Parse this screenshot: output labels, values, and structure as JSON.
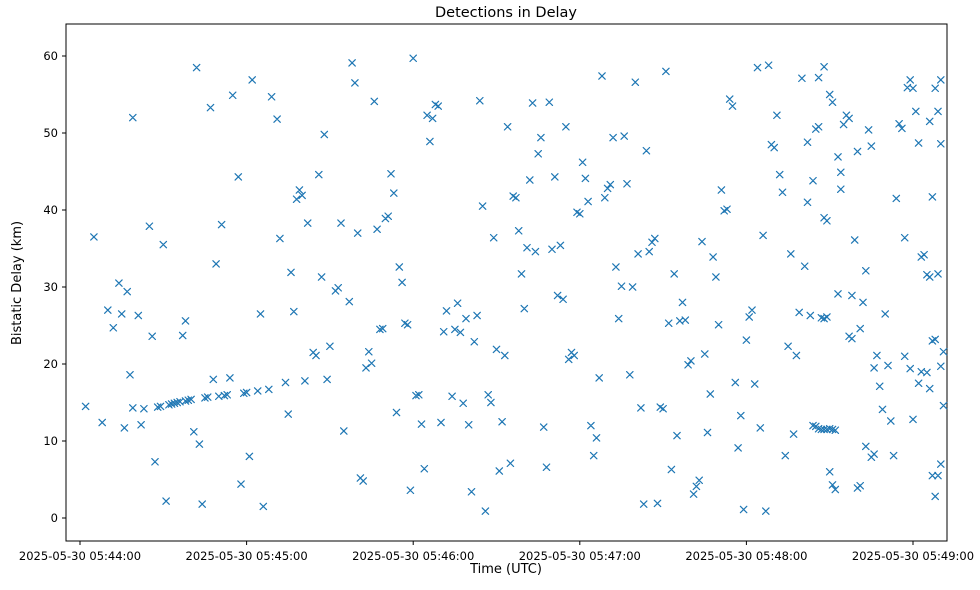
{
  "chart_data": {
    "type": "scatter",
    "title": "Detections in Delay",
    "xlabel": "Time (UTC)",
    "ylabel": "Bistatic Delay (km)",
    "marker": "x",
    "marker_color": "#1f77b4",
    "axes_color": "#000000",
    "background": "#ffffff",
    "legend": "none",
    "grid": false,
    "x_unit": "seconds after 2025-05-30 05:44:00 UTC",
    "x_tick_offsets_s": [
      0,
      60,
      120,
      180,
      240,
      300
    ],
    "x_tick_labels": [
      "2025-05-30 05:44:00",
      "2025-05-30 05:45:00",
      "2025-05-30 05:46:00",
      "2025-05-30 05:47:00",
      "2025-05-30 05:48:00",
      "2025-05-30 05:49:00"
    ],
    "y_tick_values": [
      0,
      10,
      20,
      30,
      40,
      50,
      60
    ],
    "xlim_s": [
      -5,
      312
    ],
    "ylim": [
      -3,
      64
    ],
    "points": [
      [
        2,
        14.5
      ],
      [
        5,
        36.5
      ],
      [
        8,
        12.4
      ],
      [
        10,
        27.0
      ],
      [
        12,
        24.7
      ],
      [
        14,
        30.5
      ],
      [
        15,
        26.5
      ],
      [
        16,
        11.7
      ],
      [
        17,
        29.4
      ],
      [
        18,
        18.6
      ],
      [
        19,
        14.3
      ],
      [
        19,
        52.0
      ],
      [
        21,
        26.3
      ],
      [
        22,
        12.1
      ],
      [
        23,
        14.2
      ],
      [
        25,
        37.9
      ],
      [
        26,
        23.6
      ],
      [
        27,
        7.3
      ],
      [
        28,
        14.4
      ],
      [
        29,
        14.5
      ],
      [
        30,
        35.5
      ],
      [
        31,
        2.2
      ],
      [
        32,
        14.7
      ],
      [
        33,
        14.8
      ],
      [
        34,
        14.9
      ],
      [
        35,
        15.0
      ],
      [
        36,
        15.1
      ],
      [
        37,
        23.7
      ],
      [
        38,
        25.6
      ],
      [
        38,
        15.2
      ],
      [
        39,
        15.3
      ],
      [
        40,
        15.4
      ],
      [
        41,
        11.2
      ],
      [
        42,
        58.5
      ],
      [
        43,
        9.6
      ],
      [
        44,
        1.8
      ],
      [
        45,
        15.6
      ],
      [
        46,
        15.7
      ],
      [
        47,
        53.3
      ],
      [
        48,
        18.0
      ],
      [
        49,
        33.0
      ],
      [
        50,
        15.8
      ],
      [
        51,
        38.1
      ],
      [
        52,
        15.9
      ],
      [
        53,
        16.0
      ],
      [
        54,
        18.2
      ],
      [
        55,
        54.9
      ],
      [
        57,
        44.3
      ],
      [
        58,
        4.4
      ],
      [
        59,
        16.2
      ],
      [
        60,
        16.3
      ],
      [
        61,
        8.0
      ],
      [
        62,
        56.9
      ],
      [
        64,
        16.5
      ],
      [
        65,
        26.5
      ],
      [
        66,
        1.5
      ],
      [
        68,
        16.7
      ],
      [
        69,
        54.7
      ],
      [
        71,
        51.8
      ],
      [
        72,
        36.3
      ],
      [
        74,
        17.6
      ],
      [
        75,
        13.5
      ],
      [
        76,
        31.9
      ],
      [
        77,
        26.8
      ],
      [
        78,
        41.4
      ],
      [
        79,
        42.6
      ],
      [
        80,
        41.9
      ],
      [
        81,
        17.8
      ],
      [
        82,
        38.3
      ],
      [
        84,
        21.5
      ],
      [
        85,
        21.1
      ],
      [
        86,
        44.6
      ],
      [
        87,
        31.3
      ],
      [
        88,
        49.8
      ],
      [
        89,
        18.0
      ],
      [
        90,
        22.3
      ],
      [
        92,
        29.5
      ],
      [
        93,
        29.9
      ],
      [
        94,
        38.3
      ],
      [
        95,
        11.3
      ],
      [
        97,
        28.1
      ],
      [
        98,
        59.1
      ],
      [
        99,
        56.5
      ],
      [
        100,
        37.0
      ],
      [
        101,
        5.2
      ],
      [
        102,
        4.8
      ],
      [
        103,
        19.5
      ],
      [
        104,
        21.6
      ],
      [
        105,
        20.1
      ],
      [
        106,
        54.1
      ],
      [
        107,
        37.5
      ],
      [
        108,
        24.5
      ],
      [
        109,
        24.6
      ],
      [
        110,
        38.9
      ],
      [
        111,
        39.2
      ],
      [
        112,
        44.7
      ],
      [
        113,
        42.2
      ],
      [
        114,
        13.7
      ],
      [
        115,
        32.6
      ],
      [
        116,
        30.6
      ],
      [
        117,
        25.3
      ],
      [
        118,
        25.1
      ],
      [
        119,
        3.6
      ],
      [
        120,
        59.7
      ],
      [
        121,
        15.9
      ],
      [
        122,
        16.0
      ],
      [
        123,
        12.2
      ],
      [
        124,
        6.4
      ],
      [
        125,
        52.3
      ],
      [
        126,
        48.9
      ],
      [
        127,
        51.9
      ],
      [
        128,
        53.7
      ],
      [
        129,
        53.5
      ],
      [
        130,
        12.4
      ],
      [
        131,
        24.2
      ],
      [
        132,
        26.9
      ],
      [
        134,
        15.8
      ],
      [
        135,
        24.5
      ],
      [
        136,
        27.9
      ],
      [
        137,
        24.1
      ],
      [
        138,
        14.9
      ],
      [
        139,
        25.9
      ],
      [
        140,
        12.1
      ],
      [
        141,
        3.4
      ],
      [
        142,
        22.9
      ],
      [
        143,
        26.3
      ],
      [
        144,
        54.2
      ],
      [
        145,
        40.5
      ],
      [
        146,
        0.9
      ],
      [
        147,
        16.0
      ],
      [
        148,
        15.0
      ],
      [
        149,
        36.4
      ],
      [
        150,
        21.9
      ],
      [
        151,
        6.1
      ],
      [
        152,
        12.5
      ],
      [
        153,
        21.1
      ],
      [
        154,
        50.8
      ],
      [
        155,
        7.1
      ],
      [
        156,
        41.8
      ],
      [
        157,
        41.6
      ],
      [
        158,
        37.3
      ],
      [
        159,
        31.7
      ],
      [
        160,
        27.2
      ],
      [
        161,
        35.1
      ],
      [
        162,
        43.9
      ],
      [
        163,
        53.9
      ],
      [
        164,
        34.6
      ],
      [
        165,
        47.3
      ],
      [
        166,
        49.4
      ],
      [
        167,
        11.8
      ],
      [
        168,
        6.6
      ],
      [
        169,
        54.0
      ],
      [
        170,
        34.9
      ],
      [
        171,
        44.3
      ],
      [
        172,
        28.9
      ],
      [
        173,
        35.4
      ],
      [
        174,
        28.4
      ],
      [
        175,
        50.8
      ],
      [
        176,
        20.6
      ],
      [
        177,
        21.5
      ],
      [
        178,
        21.1
      ],
      [
        179,
        39.7
      ],
      [
        180,
        39.5
      ],
      [
        181,
        46.2
      ],
      [
        182,
        44.1
      ],
      [
        183,
        41.1
      ],
      [
        184,
        12.0
      ],
      [
        185,
        8.1
      ],
      [
        186,
        10.4
      ],
      [
        187,
        18.2
      ],
      [
        188,
        57.4
      ],
      [
        189,
        41.6
      ],
      [
        190,
        42.8
      ],
      [
        191,
        43.3
      ],
      [
        192,
        49.4
      ],
      [
        193,
        32.6
      ],
      [
        194,
        25.9
      ],
      [
        195,
        30.1
      ],
      [
        196,
        49.6
      ],
      [
        197,
        43.4
      ],
      [
        198,
        18.6
      ],
      [
        199,
        30.0
      ],
      [
        200,
        56.6
      ],
      [
        201,
        34.3
      ],
      [
        202,
        14.3
      ],
      [
        203,
        1.8
      ],
      [
        204,
        47.7
      ],
      [
        205,
        34.6
      ],
      [
        206,
        35.8
      ],
      [
        207,
        36.3
      ],
      [
        208,
        1.9
      ],
      [
        209,
        14.4
      ],
      [
        210,
        14.2
      ],
      [
        211,
        58.0
      ],
      [
        212,
        25.3
      ],
      [
        213,
        6.3
      ],
      [
        214,
        31.7
      ],
      [
        215,
        10.7
      ],
      [
        216,
        25.6
      ],
      [
        217,
        28.0
      ],
      [
        218,
        25.7
      ],
      [
        219,
        19.9
      ],
      [
        220,
        20.4
      ],
      [
        221,
        3.1
      ],
      [
        222,
        4.1
      ],
      [
        223,
        4.9
      ],
      [
        224,
        35.9
      ],
      [
        225,
        21.3
      ],
      [
        226,
        11.1
      ],
      [
        227,
        16.1
      ],
      [
        228,
        33.9
      ],
      [
        229,
        31.3
      ],
      [
        230,
        25.1
      ],
      [
        231,
        42.6
      ],
      [
        232,
        39.9
      ],
      [
        233,
        40.1
      ],
      [
        234,
        54.4
      ],
      [
        235,
        53.5
      ],
      [
        236,
        17.6
      ],
      [
        237,
        9.1
      ],
      [
        238,
        13.3
      ],
      [
        239,
        1.1
      ],
      [
        240,
        23.1
      ],
      [
        241,
        26.1
      ],
      [
        242,
        27.0
      ],
      [
        243,
        17.4
      ],
      [
        244,
        58.5
      ],
      [
        245,
        11.7
      ],
      [
        246,
        36.7
      ],
      [
        247,
        0.9
      ],
      [
        248,
        58.8
      ],
      [
        249,
        48.5
      ],
      [
        250,
        48.1
      ],
      [
        251,
        52.3
      ],
      [
        252,
        44.6
      ],
      [
        253,
        42.3
      ],
      [
        254,
        8.1
      ],
      [
        255,
        22.3
      ],
      [
        256,
        34.3
      ],
      [
        257,
        10.9
      ],
      [
        258,
        21.1
      ],
      [
        259,
        26.7
      ],
      [
        260,
        57.1
      ],
      [
        261,
        32.7
      ],
      [
        262,
        48.8
      ],
      [
        263,
        26.3
      ],
      [
        262,
        41.0
      ],
      [
        264,
        12.0
      ],
      [
        265,
        11.9
      ],
      [
        266,
        11.6
      ],
      [
        267,
        11.5
      ],
      [
        268,
        11.5
      ],
      [
        269,
        11.5
      ],
      [
        270,
        11.6
      ],
      [
        271,
        11.5
      ],
      [
        272,
        11.4
      ],
      [
        264,
        43.8
      ],
      [
        265,
        50.5
      ],
      [
        266,
        50.8
      ],
      [
        266,
        57.2
      ],
      [
        267,
        26.0
      ],
      [
        268,
        25.9
      ],
      [
        268,
        58.6
      ],
      [
        268,
        39.0
      ],
      [
        269,
        26.1
      ],
      [
        269,
        38.6
      ],
      [
        270,
        6.0
      ],
      [
        270,
        55.0
      ],
      [
        271,
        4.3
      ],
      [
        271,
        54.0
      ],
      [
        272,
        3.7
      ],
      [
        273,
        46.9
      ],
      [
        273,
        29.1
      ],
      [
        274,
        42.7
      ],
      [
        274,
        44.9
      ],
      [
        275,
        51.1
      ],
      [
        276,
        52.3
      ],
      [
        277,
        51.9
      ],
      [
        277,
        23.6
      ],
      [
        278,
        28.9
      ],
      [
        278,
        23.3
      ],
      [
        279,
        36.1
      ],
      [
        280,
        47.6
      ],
      [
        280,
        3.9
      ],
      [
        281,
        24.6
      ],
      [
        281,
        4.2
      ],
      [
        282,
        28.0
      ],
      [
        283,
        32.1
      ],
      [
        283,
        9.3
      ],
      [
        284,
        50.4
      ],
      [
        285,
        48.3
      ],
      [
        285,
        7.9
      ],
      [
        286,
        19.5
      ],
      [
        286,
        8.3
      ],
      [
        287,
        21.1
      ],
      [
        288,
        17.1
      ],
      [
        289,
        14.1
      ],
      [
        290,
        26.5
      ],
      [
        291,
        19.8
      ],
      [
        292,
        12.6
      ],
      [
        293,
        8.1
      ],
      [
        294,
        41.5
      ],
      [
        295,
        51.2
      ],
      [
        296,
        50.6
      ],
      [
        297,
        36.4
      ],
      [
        297,
        21.0
      ],
      [
        298,
        55.9
      ],
      [
        299,
        56.9
      ],
      [
        299,
        19.4
      ],
      [
        300,
        55.8
      ],
      [
        300,
        12.8
      ],
      [
        301,
        52.8
      ],
      [
        302,
        48.7
      ],
      [
        302,
        17.5
      ],
      [
        303,
        33.9
      ],
      [
        303,
        19.0
      ],
      [
        304,
        34.2
      ],
      [
        305,
        31.6
      ],
      [
        305,
        18.9
      ],
      [
        306,
        31.3
      ],
      [
        306,
        16.8
      ],
      [
        306,
        51.5
      ],
      [
        307,
        23.0
      ],
      [
        307,
        41.7
      ],
      [
        307,
        5.5
      ],
      [
        308,
        23.2
      ],
      [
        308,
        2.8
      ],
      [
        308,
        55.8
      ],
      [
        309,
        5.5
      ],
      [
        309,
        31.7
      ],
      [
        309,
        52.8
      ],
      [
        310,
        7.0
      ],
      [
        310,
        19.7
      ],
      [
        310,
        48.6
      ],
      [
        310,
        56.9
      ],
      [
        311,
        14.6
      ],
      [
        311,
        21.6
      ]
    ]
  }
}
